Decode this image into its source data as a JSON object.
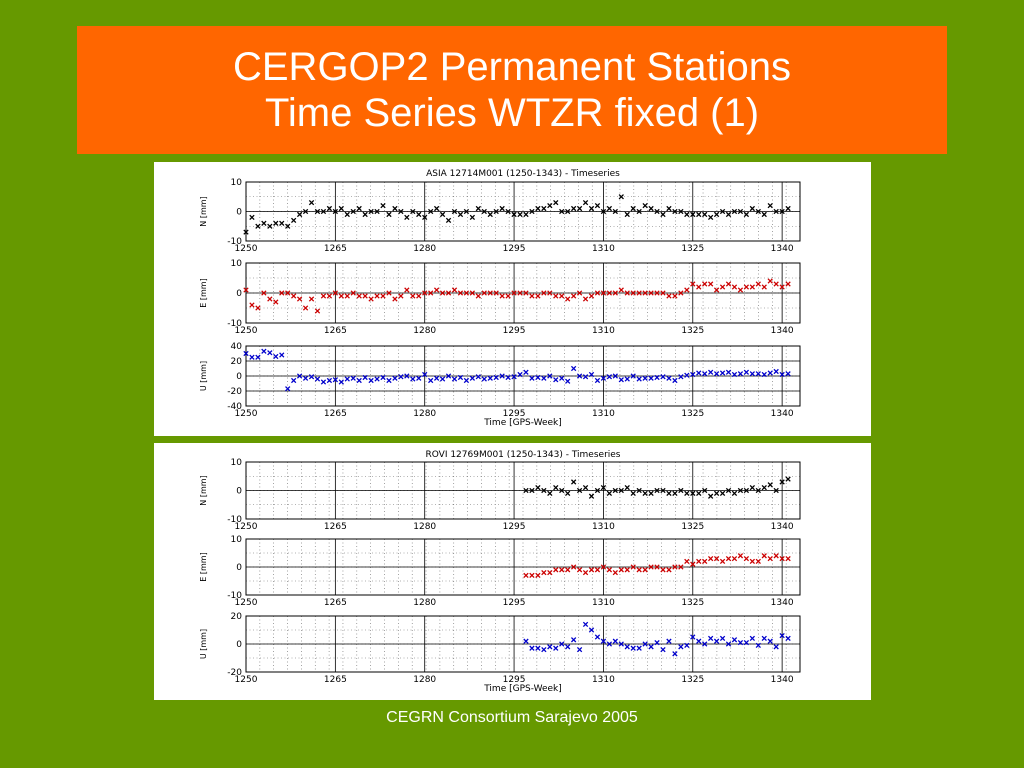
{
  "slide": {
    "title_line1": "CERGOP2 Permanent Stations",
    "title_line2": "Time Series WTZR fixed (1)",
    "footer": "CEGRN Consortium Sarajevo 2005",
    "colors": {
      "background": "#669900",
      "title_box": "#ff6600",
      "title_text": "#ffffff",
      "series_N": "#000000",
      "series_E": "#cc0000",
      "series_U": "#0000cc"
    }
  },
  "chart_data": [
    {
      "type": "scatter",
      "title": "ASIA 12714M001 (1250-1343) - Timeseries",
      "xlabel": "Time [GPS-Week]",
      "x_ticks": [
        1250,
        1265,
        1280,
        1295,
        1310,
        1325,
        1340
      ],
      "grid": true,
      "subplots": [
        {
          "name": "N",
          "ylabel": "N [mm]",
          "ylim": [
            -10,
            10
          ],
          "y_ticks": [
            10,
            0,
            -10
          ],
          "color": "#000000",
          "x": [
            1250,
            1251,
            1252,
            1253,
            1254,
            1255,
            1256,
            1257,
            1258,
            1259,
            1260,
            1261,
            1262,
            1263,
            1264,
            1265,
            1266,
            1267,
            1268,
            1269,
            1270,
            1271,
            1272,
            1273,
            1274,
            1275,
            1276,
            1277,
            1278,
            1279,
            1280,
            1281,
            1282,
            1283,
            1284,
            1285,
            1286,
            1287,
            1288,
            1289,
            1290,
            1291,
            1292,
            1293,
            1294,
            1295,
            1296,
            1297,
            1298,
            1299,
            1300,
            1301,
            1302,
            1303,
            1304,
            1305,
            1306,
            1307,
            1308,
            1309,
            1310,
            1311,
            1312,
            1313,
            1314,
            1315,
            1316,
            1317,
            1318,
            1319,
            1320,
            1321,
            1322,
            1323,
            1324,
            1325,
            1326,
            1327,
            1328,
            1329,
            1330,
            1331,
            1332,
            1333,
            1334,
            1335,
            1336,
            1337,
            1338,
            1339,
            1340,
            1341
          ],
          "y": [
            -7,
            -2,
            -5,
            -4,
            -5,
            -4,
            -4,
            -5,
            -3,
            -1,
            0,
            3,
            0,
            0,
            1,
            0,
            1,
            -1,
            0,
            1,
            -1,
            0,
            0,
            2,
            -1,
            1,
            0,
            -2,
            0,
            -1,
            -2,
            0,
            1,
            -1,
            -3,
            0,
            -1,
            0,
            -2,
            1,
            0,
            -1,
            0,
            1,
            0,
            -1,
            -1,
            -1,
            0,
            1,
            1,
            2,
            3,
            0,
            0,
            1,
            1,
            3,
            1,
            2,
            0,
            1,
            0,
            5,
            -1,
            1,
            0,
            2,
            1,
            0,
            -1,
            1,
            0,
            0,
            -1,
            -1,
            -1,
            -1,
            -2,
            -1,
            0,
            -1,
            0,
            0,
            -1,
            1,
            0,
            -1,
            2,
            0,
            0,
            1
          ]
        },
        {
          "name": "E",
          "ylabel": "E [mm]",
          "ylim": [
            -10,
            10
          ],
          "y_ticks": [
            10,
            0,
            -10
          ],
          "color": "#cc0000",
          "x": [
            1250,
            1251,
            1252,
            1253,
            1254,
            1255,
            1256,
            1257,
            1258,
            1259,
            1260,
            1261,
            1262,
            1263,
            1264,
            1265,
            1266,
            1267,
            1268,
            1269,
            1270,
            1271,
            1272,
            1273,
            1274,
            1275,
            1276,
            1277,
            1278,
            1279,
            1280,
            1281,
            1282,
            1283,
            1284,
            1285,
            1286,
            1287,
            1288,
            1289,
            1290,
            1291,
            1292,
            1293,
            1294,
            1295,
            1296,
            1297,
            1298,
            1299,
            1300,
            1301,
            1302,
            1303,
            1304,
            1305,
            1306,
            1307,
            1308,
            1309,
            1310,
            1311,
            1312,
            1313,
            1314,
            1315,
            1316,
            1317,
            1318,
            1319,
            1320,
            1321,
            1322,
            1323,
            1324,
            1325,
            1326,
            1327,
            1328,
            1329,
            1330,
            1331,
            1332,
            1333,
            1334,
            1335,
            1336,
            1337,
            1338,
            1339,
            1340,
            1341
          ],
          "y": [
            1,
            -4,
            -5,
            0,
            -2,
            -3,
            0,
            0,
            -1,
            -2,
            -5,
            -2,
            -6,
            -1,
            -1,
            0,
            -1,
            -1,
            0,
            -1,
            -1,
            -2,
            -1,
            -1,
            0,
            -2,
            -1,
            1,
            -1,
            -1,
            0,
            0,
            1,
            0,
            0,
            1,
            0,
            0,
            0,
            -1,
            0,
            0,
            0,
            -1,
            -1,
            0,
            0,
            0,
            -1,
            -1,
            0,
            0,
            -1,
            -1,
            -2,
            -1,
            0,
            -2,
            -1,
            0,
            0,
            0,
            0,
            1,
            0,
            0,
            0,
            0,
            0,
            0,
            0,
            -1,
            -1,
            0,
            1,
            3,
            2,
            3,
            3,
            1,
            2,
            3,
            2,
            1,
            2,
            2,
            3,
            2,
            4,
            3,
            2,
            3
          ]
        },
        {
          "name": "U",
          "ylabel": "U [mm]",
          "ylim": [
            -40,
            40
          ],
          "y_ticks": [
            40,
            20,
            0,
            -20,
            -40
          ],
          "color": "#0000cc",
          "x": [
            1250,
            1251,
            1252,
            1253,
            1254,
            1255,
            1256,
            1257,
            1258,
            1259,
            1260,
            1261,
            1262,
            1263,
            1264,
            1265,
            1266,
            1267,
            1268,
            1269,
            1270,
            1271,
            1272,
            1273,
            1274,
            1275,
            1276,
            1277,
            1278,
            1279,
            1280,
            1281,
            1282,
            1283,
            1284,
            1285,
            1286,
            1287,
            1288,
            1289,
            1290,
            1291,
            1292,
            1293,
            1294,
            1295,
            1296,
            1297,
            1298,
            1299,
            1300,
            1301,
            1302,
            1303,
            1304,
            1305,
            1306,
            1307,
            1308,
            1309,
            1310,
            1311,
            1312,
            1313,
            1314,
            1315,
            1316,
            1317,
            1318,
            1319,
            1320,
            1321,
            1322,
            1323,
            1324,
            1325,
            1326,
            1327,
            1328,
            1329,
            1330,
            1331,
            1332,
            1333,
            1334,
            1335,
            1336,
            1337,
            1338,
            1339,
            1340,
            1341
          ],
          "y": [
            30,
            25,
            25,
            33,
            31,
            26,
            28,
            -17,
            -6,
            0,
            -3,
            -1,
            -4,
            -8,
            -6,
            -5,
            -8,
            -4,
            -3,
            -6,
            -2,
            -6,
            -4,
            -2,
            -6,
            -3,
            -1,
            0,
            -4,
            -3,
            2,
            -6,
            -3,
            -4,
            0,
            -4,
            -2,
            -6,
            -3,
            -1,
            -4,
            -3,
            -2,
            0,
            -2,
            -1,
            2,
            5,
            -3,
            -2,
            -3,
            0,
            -5,
            -3,
            -7,
            10,
            0,
            -1,
            2,
            -6,
            -3,
            -1,
            0,
            -5,
            -4,
            0,
            -4,
            -3,
            -3,
            -2,
            -1,
            -3,
            -6,
            -1,
            1,
            2,
            4,
            3,
            5,
            3,
            4,
            5,
            2,
            3,
            5,
            3,
            3,
            2,
            4,
            6,
            2,
            3
          ]
        }
      ]
    },
    {
      "type": "scatter",
      "title": "ROVI 12769M001 (1250-1343) - Timeseries",
      "xlabel": "Time [GPS-Week]",
      "x_ticks": [
        1250,
        1265,
        1280,
        1295,
        1310,
        1325,
        1340
      ],
      "grid": true,
      "subplots": [
        {
          "name": "N",
          "ylabel": "N [mm]",
          "ylim": [
            -10,
            10
          ],
          "y_ticks": [
            10,
            0,
            -10
          ],
          "color": "#000000",
          "x": [
            1297,
            1298,
            1299,
            1300,
            1301,
            1302,
            1303,
            1304,
            1305,
            1306,
            1307,
            1308,
            1309,
            1310,
            1311,
            1312,
            1313,
            1314,
            1315,
            1316,
            1317,
            1318,
            1319,
            1320,
            1321,
            1322,
            1323,
            1324,
            1325,
            1326,
            1327,
            1328,
            1329,
            1330,
            1331,
            1332,
            1333,
            1334,
            1335,
            1336,
            1337,
            1338,
            1339,
            1340,
            1341
          ],
          "y": [
            0,
            0,
            1,
            0,
            -1,
            1,
            0,
            -1,
            3,
            0,
            1,
            -2,
            0,
            1,
            -1,
            0,
            0,
            1,
            -1,
            0,
            -1,
            -1,
            0,
            0,
            -1,
            -1,
            0,
            -1,
            -1,
            -1,
            0,
            -2,
            -1,
            -1,
            0,
            -1,
            0,
            0,
            1,
            0,
            1,
            2,
            0,
            3,
            4
          ]
        },
        {
          "name": "E",
          "ylabel": "E [mm]",
          "ylim": [
            -10,
            10
          ],
          "y_ticks": [
            10,
            0,
            -10
          ],
          "color": "#cc0000",
          "x": [
            1297,
            1298,
            1299,
            1300,
            1301,
            1302,
            1303,
            1304,
            1305,
            1306,
            1307,
            1308,
            1309,
            1310,
            1311,
            1312,
            1313,
            1314,
            1315,
            1316,
            1317,
            1318,
            1319,
            1320,
            1321,
            1322,
            1323,
            1324,
            1325,
            1326,
            1327,
            1328,
            1329,
            1330,
            1331,
            1332,
            1333,
            1334,
            1335,
            1336,
            1337,
            1338,
            1339,
            1340,
            1341
          ],
          "y": [
            -3,
            -3,
            -3,
            -2,
            -2,
            -1,
            -1,
            -1,
            0,
            -1,
            -2,
            -1,
            -1,
            0,
            -1,
            -2,
            -1,
            -1,
            0,
            -1,
            -1,
            0,
            0,
            -1,
            -1,
            0,
            0,
            2,
            1,
            2,
            2,
            3,
            3,
            2,
            3,
            3,
            4,
            3,
            2,
            2,
            4,
            3,
            4,
            3,
            3
          ]
        },
        {
          "name": "U",
          "ylabel": "U [mm]",
          "ylim": [
            -20,
            20
          ],
          "y_ticks": [
            20,
            0,
            -20
          ],
          "color": "#0000cc",
          "x": [
            1297,
            1298,
            1299,
            1300,
            1301,
            1302,
            1303,
            1304,
            1305,
            1306,
            1307,
            1308,
            1309,
            1310,
            1311,
            1312,
            1313,
            1314,
            1315,
            1316,
            1317,
            1318,
            1319,
            1320,
            1321,
            1322,
            1323,
            1324,
            1325,
            1326,
            1327,
            1328,
            1329,
            1330,
            1331,
            1332,
            1333,
            1334,
            1335,
            1336,
            1337,
            1338,
            1339,
            1340,
            1341
          ],
          "y": [
            2,
            -3,
            -3,
            -4,
            -2,
            -3,
            0,
            -2,
            3,
            -4,
            14,
            10,
            5,
            2,
            0,
            2,
            0,
            -2,
            -3,
            -3,
            0,
            -2,
            1,
            -4,
            2,
            -7,
            -2,
            -1,
            5,
            2,
            0,
            4,
            2,
            4,
            0,
            3,
            1,
            1,
            4,
            -1,
            4,
            2,
            -2,
            6,
            4
          ]
        }
      ]
    }
  ]
}
